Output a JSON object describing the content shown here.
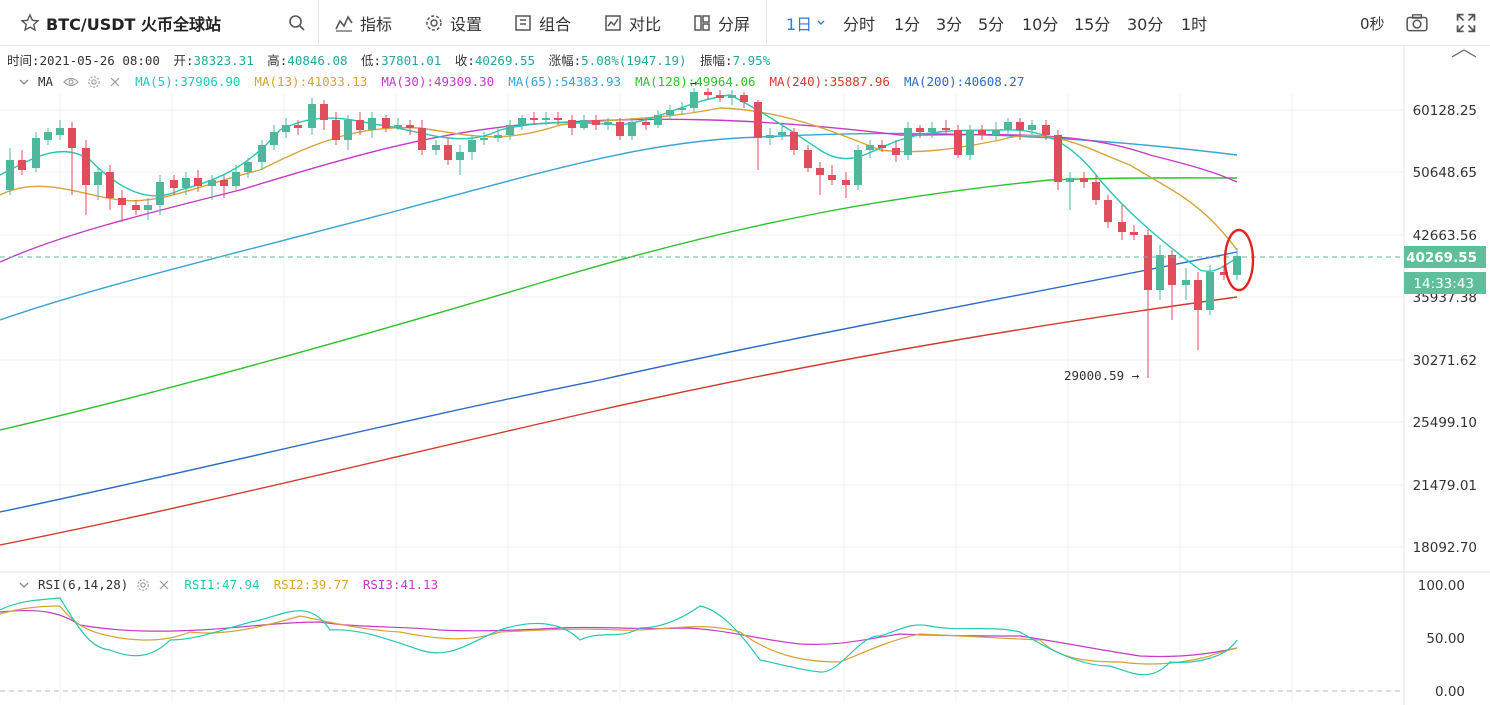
{
  "toolbar": {
    "symbol": "BTC/USDT 火币全球站",
    "indicators": "指标",
    "settings": "设置",
    "combine": "组合",
    "compare": "对比",
    "split": "分屏",
    "period_active": "1日",
    "periods": [
      "分时",
      "1分",
      "3分",
      "5分",
      "10分",
      "15分",
      "30分",
      "1时"
    ],
    "countdown": "0秒"
  },
  "info": {
    "time_label": "时间:",
    "time": "2021-05-26 08:00",
    "open_label": "开:",
    "open": "38323.31",
    "high_label": "高:",
    "high": "40846.08",
    "low_label": "低:",
    "low": "37801.01",
    "close_label": "收:",
    "close": "40269.55",
    "change_label": "涨幅:",
    "change": "5.08%(1947.19)",
    "amp_label": "振幅:",
    "amp": "7.95%"
  },
  "ma_legend": {
    "title": "MA",
    "items": [
      {
        "text": "MA(5):37906.90",
        "color": "#26c6b5"
      },
      {
        "text": "MA(13):41033.13",
        "color": "#d4a537"
      },
      {
        "text": "MA(30):49309.30",
        "color": "#c43cc4"
      },
      {
        "text": "MA(65):54383.93",
        "color": "#3aa4d4"
      },
      {
        "text": "MA(128):49964.06",
        "color": "#2ec12e"
      },
      {
        "text": "MA(240):35887.96",
        "color": "#d23a2e"
      },
      {
        "text": "MA(200):40608.27",
        "color": "#2d6bc4"
      }
    ]
  },
  "rsi_legend": {
    "title": "RSI(6,14,28)",
    "items": [
      {
        "text": "RSI1:47.94",
        "color": "#26c6b5"
      },
      {
        "text": "RSI2:39.77",
        "color": "#d4a537"
      },
      {
        "text": "RSI3:41.13",
        "color": "#c43cc4"
      }
    ]
  },
  "price_axis": [
    "60128.25",
    "50648.65",
    "42663.56",
    "35937.38",
    "30271.62",
    "25499.10",
    "21479.01",
    "18092.70"
  ],
  "current_price": "40269.55",
  "countdown_tag": "14:33:43",
  "low_marker": "29000.59 →",
  "high_marker": "→",
  "rsi_axis": [
    "100.00",
    "50.00",
    "0.00"
  ],
  "colors": {
    "up": "#4fb79b",
    "down": "#e04e5e",
    "accent": "#2b7bd8",
    "price_tag": "#5fbf9a"
  }
}
